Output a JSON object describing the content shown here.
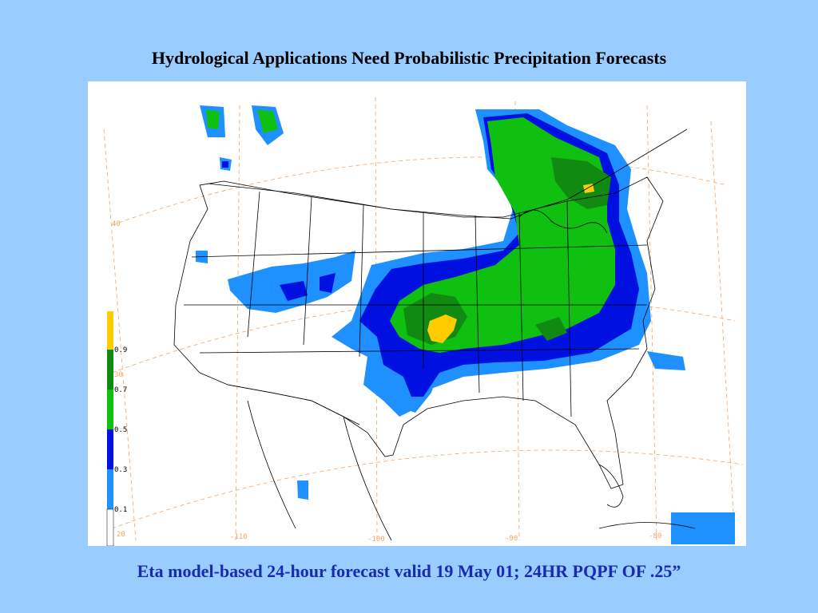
{
  "title": "Hydrological Applications Need Probabilistic Precipitation Forecasts",
  "caption": "Eta model-based 24-hour forecast valid 19 May 01; 24HR PQPF OF .25”",
  "legend": {
    "labels": [
      "0.9",
      "0.7",
      "0.5",
      "0.3",
      "0.1"
    ],
    "bins": [
      {
        "range": "0.9-1.0",
        "color": "#ffcc00"
      },
      {
        "range": "0.7-0.9",
        "color": "#108a10"
      },
      {
        "range": "0.5-0.7",
        "color": "#10c010"
      },
      {
        "range": "0.3-0.5",
        "color": "#0010e0"
      },
      {
        "range": "0.1-0.3",
        "color": "#1e90ff"
      },
      {
        "range": "0.0-0.1",
        "color": "#ffffff"
      }
    ]
  },
  "grid_labels": {
    "latitudes": [
      "40",
      "30",
      "20"
    ],
    "longitudes": [
      "-110",
      "-100",
      "-90",
      "-80"
    ],
    "color": "#f4a460"
  },
  "colors": {
    "background": "#99ccff",
    "caption": "#1a2bb0",
    "border_lines": "#000000",
    "grid_lines": "#f4a460"
  }
}
